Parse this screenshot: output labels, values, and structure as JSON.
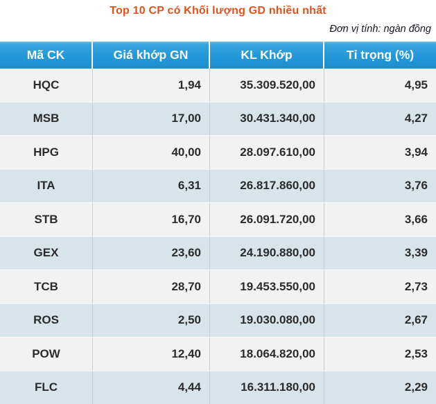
{
  "chart_data": {
    "type": "table",
    "title": "Top 10 CP có Khối lượng GD nhiều nhất",
    "unit_note": "Đơn vị tính: ngàn đồng",
    "columns": [
      "Mã CK",
      "Giá khớp GN",
      "KL Khớp",
      "Tỉ trọng (%)"
    ],
    "rows": [
      [
        "HQC",
        "1,94",
        "35.309.520,00",
        "4,95"
      ],
      [
        "MSB",
        "17,00",
        "30.431.340,00",
        "4,27"
      ],
      [
        "HPG",
        "40,00",
        "28.097.610,00",
        "3,94"
      ],
      [
        "ITA",
        "6,31",
        "26.817.860,00",
        "3,76"
      ],
      [
        "STB",
        "16,70",
        "26.091.720,00",
        "3,66"
      ],
      [
        "GEX",
        "23,60",
        "24.190.880,00",
        "3,39"
      ],
      [
        "TCB",
        "28,70",
        "19.453.550,00",
        "2,73"
      ],
      [
        "ROS",
        "2,50",
        "19.030.080,00",
        "2,67"
      ],
      [
        "POW",
        "12,40",
        "18.064.820,00",
        "2,53"
      ],
      [
        "FLC",
        "4,44",
        "16.311.180,00",
        "2,29"
      ]
    ]
  },
  "colors": {
    "title_text": "#e0521c",
    "header_background": "#2196d6",
    "header_text": "#ffffff",
    "row_light": "#f2f2f3",
    "row_alternate": "#d9e3ea",
    "body_text": "#2b2b2b"
  }
}
